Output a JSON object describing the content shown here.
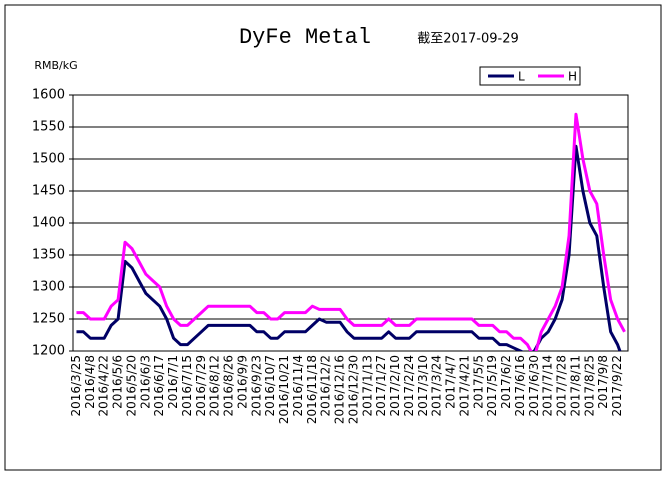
{
  "chart_data": {
    "type": "line",
    "title": "DyFe Metal",
    "subtitle": "截至2017-09-29",
    "y_label": "RMB/kG",
    "categories": [
      "2016/3/25",
      null,
      "2016/4/8",
      null,
      "2016/4/22",
      null,
      "2016/5/6",
      null,
      "2016/5/20",
      null,
      "2016/6/3",
      null,
      "2016/6/17",
      null,
      "2016/7/1",
      null,
      "2016/7/15",
      null,
      "2016/7/29",
      null,
      "2016/8/12",
      null,
      "2016/8/26",
      null,
      "2016/9/9",
      null,
      "2016/9/23",
      null,
      "2016/10/7",
      null,
      "2016/10/21",
      null,
      "2016/11/4",
      null,
      "2016/11/18",
      null,
      "2016/12/2",
      null,
      "2016/12/16",
      null,
      "2016/12/30",
      null,
      "2017/1/13",
      null,
      "2017/1/27",
      null,
      "2017/2/10",
      null,
      "2017/2/24",
      null,
      "2017/3/10",
      null,
      "2017/3/24",
      null,
      "2017/4/7",
      null,
      "2017/4/21",
      null,
      "2017/5/5",
      null,
      "2017/5/19",
      null,
      "2017/6/2",
      null,
      "2017/6/16",
      null,
      "2017/6/30",
      null,
      "2017/7/14",
      null,
      "2017/7/28",
      null,
      "2017/8/11",
      null,
      "2017/8/25",
      null,
      "2017/9/8",
      null,
      "2017/9/22",
      null
    ],
    "series": [
      {
        "name": "L",
        "color": "#000066",
        "values": [
          1230,
          1230,
          1220,
          1220,
          1220,
          1240,
          1250,
          1340,
          1330,
          1310,
          1290,
          1280,
          1270,
          1250,
          1220,
          1210,
          1210,
          1220,
          1230,
          1240,
          1240,
          1240,
          1240,
          1240,
          1240,
          1240,
          1230,
          1230,
          1220,
          1220,
          1230,
          1230,
          1230,
          1230,
          1240,
          1250,
          1245,
          1245,
          1245,
          1230,
          1220,
          1220,
          1220,
          1220,
          1220,
          1230,
          1220,
          1220,
          1220,
          1230,
          1230,
          1230,
          1230,
          1230,
          1230,
          1230,
          1230,
          1230,
          1220,
          1220,
          1220,
          1210,
          1210,
          1205,
          1200,
          1195,
          1200,
          1220,
          1230,
          1250,
          1280,
          1350,
          1520,
          1450,
          1400,
          1380,
          1300,
          1230,
          1210,
          1180
        ]
      },
      {
        "name": "H",
        "color": "#ff00ff",
        "values": [
          1260,
          1260,
          1250,
          1250,
          1250,
          1270,
          1280,
          1370,
          1360,
          1340,
          1320,
          1310,
          1300,
          1270,
          1250,
          1240,
          1240,
          1250,
          1260,
          1270,
          1270,
          1270,
          1270,
          1270,
          1270,
          1270,
          1260,
          1260,
          1250,
          1250,
          1260,
          1260,
          1260,
          1260,
          1270,
          1265,
          1265,
          1265,
          1265,
          1250,
          1240,
          1240,
          1240,
          1240,
          1240,
          1250,
          1240,
          1240,
          1240,
          1250,
          1250,
          1250,
          1250,
          1250,
          1250,
          1250,
          1250,
          1250,
          1240,
          1240,
          1240,
          1230,
          1230,
          1220,
          1220,
          1210,
          1190,
          1230,
          1250,
          1270,
          1300,
          1380,
          1570,
          1500,
          1450,
          1430,
          1350,
          1280,
          1250,
          1230
        ]
      }
    ],
    "ylim": [
      1200,
      1600
    ],
    "yticks": [
      1200,
      1250,
      1300,
      1350,
      1400,
      1450,
      1500,
      1550,
      1600
    ],
    "grid": true
  }
}
